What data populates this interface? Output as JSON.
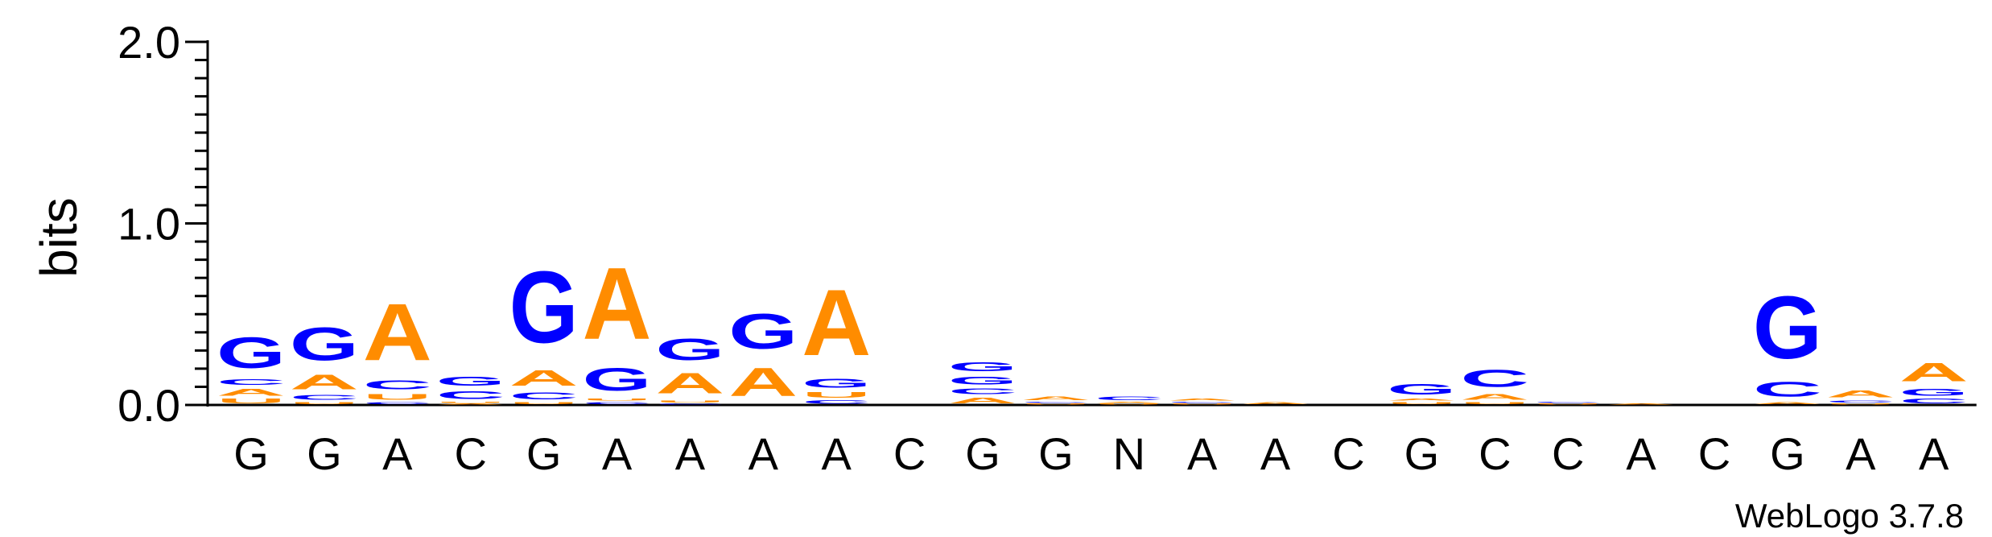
{
  "chart_data": {
    "type": "sequence-logo",
    "ylabel": "bits",
    "ylim": [
      0,
      2.0
    ],
    "yticks": [
      "0.0",
      "1.0",
      "2.0"
    ],
    "credit": "WebLogo 3.7.8",
    "colors": {
      "A": "#ff8c00",
      "C": "#0000ff",
      "G": "#0000ff",
      "T": "#ff0000",
      "U": "#ff8c00",
      "N": "#000000"
    },
    "positions": [
      {
        "label": "G",
        "stack": [
          [
            "U",
            0.04
          ],
          [
            "A",
            0.06
          ],
          [
            "C",
            0.05
          ],
          [
            "G",
            0.27
          ]
        ]
      },
      {
        "label": "G",
        "stack": [
          [
            "U",
            0.02
          ],
          [
            "C",
            0.04
          ],
          [
            "A",
            0.13
          ],
          [
            "G",
            0.29
          ]
        ]
      },
      {
        "label": "A",
        "stack": [
          [
            "C",
            0.02
          ],
          [
            "U",
            0.05
          ],
          [
            "C",
            0.08
          ],
          [
            "A",
            0.5
          ]
        ]
      },
      {
        "label": "C",
        "stack": [
          [
            "A",
            0.01
          ],
          [
            "U",
            0.01
          ],
          [
            "C",
            0.07
          ],
          [
            "G",
            0.08
          ]
        ]
      },
      {
        "label": "G",
        "stack": [
          [
            "U",
            0.02
          ],
          [
            "C",
            0.06
          ],
          [
            "A",
            0.14
          ],
          [
            "G",
            0.63
          ]
        ]
      },
      {
        "label": "A",
        "stack": [
          [
            "C",
            0.02
          ],
          [
            "U",
            0.02
          ],
          [
            "G",
            0.2
          ],
          [
            "A",
            0.63
          ]
        ]
      },
      {
        "label": "A",
        "stack": [
          [
            "C",
            0.01
          ],
          [
            "U",
            0.02
          ],
          [
            "A",
            0.18
          ],
          [
            "G",
            0.19
          ]
        ]
      },
      {
        "label": "A",
        "stack": [
          [
            "A",
            0.25
          ],
          [
            "G",
            0.31
          ]
        ]
      },
      {
        "label": "A",
        "stack": [
          [
            "C",
            0.03
          ],
          [
            "U",
            0.05
          ],
          [
            "G",
            0.08
          ],
          [
            "A",
            0.58
          ]
        ]
      },
      {
        "label": "C",
        "stack": []
      },
      {
        "label": "G",
        "stack": [
          [
            "A",
            0.05
          ],
          [
            "C",
            0.05
          ],
          [
            "G",
            0.07
          ],
          [
            "G",
            0.08
          ]
        ]
      },
      {
        "label": "G",
        "stack": [
          [
            "U",
            0.01
          ],
          [
            "C",
            0.01
          ],
          [
            "A",
            0.03
          ]
        ]
      },
      {
        "label": "N",
        "stack": [
          [
            "U",
            0.01
          ],
          [
            "A",
            0.01
          ],
          [
            "C",
            0.03
          ]
        ]
      },
      {
        "label": "A",
        "stack": [
          [
            "U",
            0.01
          ],
          [
            "C",
            0.01
          ],
          [
            "A",
            0.02
          ]
        ]
      },
      {
        "label": "A",
        "stack": [
          [
            "A",
            0.02
          ]
        ]
      },
      {
        "label": "C",
        "stack": []
      },
      {
        "label": "G",
        "stack": [
          [
            "U",
            0.02
          ],
          [
            "A",
            0.02
          ],
          [
            "G",
            0.09
          ]
        ]
      },
      {
        "label": "C",
        "stack": [
          [
            "U",
            0.02
          ],
          [
            "A",
            0.05
          ],
          [
            "C",
            0.15
          ]
        ]
      },
      {
        "label": "C",
        "stack": [
          [
            "U",
            0.01
          ],
          [
            "C",
            0.01
          ]
        ]
      },
      {
        "label": "A",
        "stack": [
          [
            "A",
            0.01
          ]
        ]
      },
      {
        "label": "C",
        "stack": []
      },
      {
        "label": "G",
        "stack": [
          [
            "A",
            0.02
          ],
          [
            "C",
            0.13
          ],
          [
            "G",
            0.55
          ]
        ]
      },
      {
        "label": "A",
        "stack": [
          [
            "U",
            0.01
          ],
          [
            "C",
            0.02
          ],
          [
            "A",
            0.06
          ]
        ]
      },
      {
        "label": "A",
        "stack": [
          [
            "C",
            0.04
          ],
          [
            "G",
            0.06
          ],
          [
            "A",
            0.16
          ]
        ]
      }
    ]
  }
}
